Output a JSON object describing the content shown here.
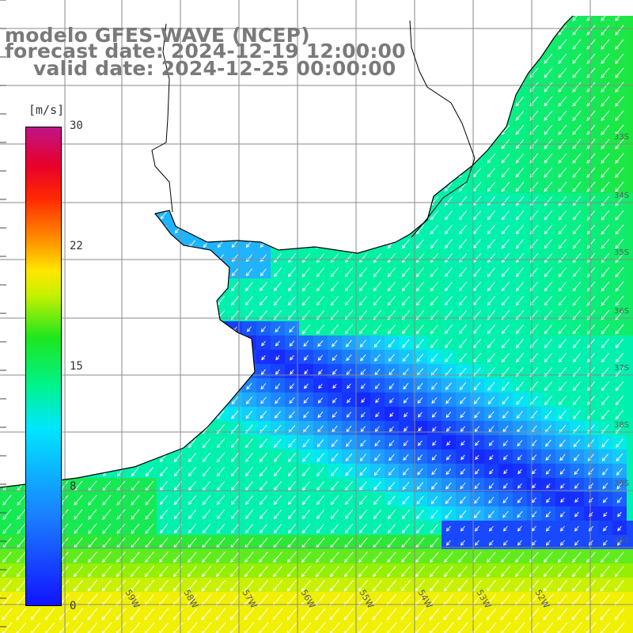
{
  "header": {
    "model": "modelo GFES-WAVE (NCEP)",
    "forecast": "forecast date: 2024-12-19 12:00:00",
    "valid": "valid date: 2024-12-25 00:00:00"
  },
  "colorbar": {
    "unit": "[m/s]",
    "ticks": [
      "30",
      "22",
      "15",
      "8",
      "0"
    ],
    "colors": [
      "#1212ff",
      "#1a7bff",
      "#00e6ff",
      "#00f28c",
      "#1ee61e",
      "#c8f000",
      "#ffe600",
      "#ff9600",
      "#ff2a00",
      "#c01488"
    ]
  },
  "lon_labels": [
    "59W",
    "58W",
    "57W",
    "56W",
    "55W",
    "54W",
    "53W",
    "52W"
  ],
  "lat_labels": [
    "33S",
    "34S",
    "35S",
    "36S",
    "37S",
    "38S",
    "39S",
    "40S"
  ],
  "wind_direction": "northeasterly winds blowing toward southwest"
}
